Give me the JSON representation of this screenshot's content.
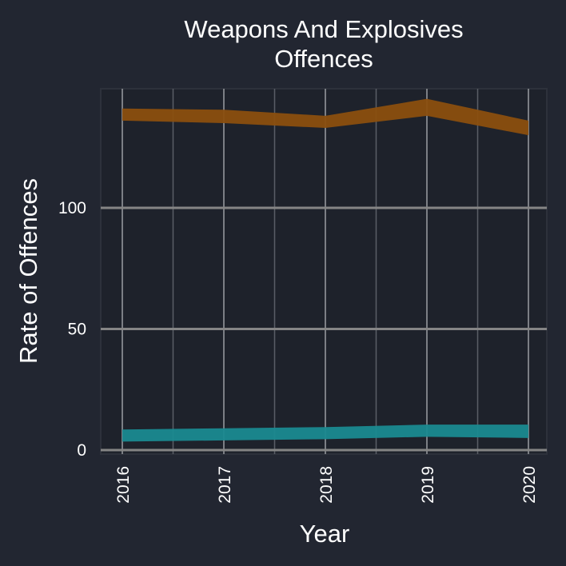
{
  "chart_data": {
    "type": "line",
    "title_line1": "Weapons And Explosives",
    "title_line2": "Offences",
    "xlabel": "Year",
    "ylabel": "Rate of Offences",
    "categories": [
      "2016",
      "2017",
      "2018",
      "2019",
      "2020"
    ],
    "yticks": [
      0,
      50,
      100
    ],
    "ylim": [
      0,
      150
    ],
    "grid": true,
    "legend": "none",
    "series": [
      {
        "color": "#8b4f0e",
        "band": [
          [
            136,
            141
          ],
          [
            135,
            140.5
          ],
          [
            133,
            138
          ],
          [
            138,
            145
          ],
          [
            130,
            136
          ]
        ]
      },
      {
        "color": "#1a8a90",
        "band": [
          [
            3.5,
            8.5
          ],
          [
            4,
            9
          ],
          [
            4.5,
            9.5
          ],
          [
            5.5,
            10.5
          ],
          [
            5,
            10.5
          ]
        ]
      }
    ]
  }
}
